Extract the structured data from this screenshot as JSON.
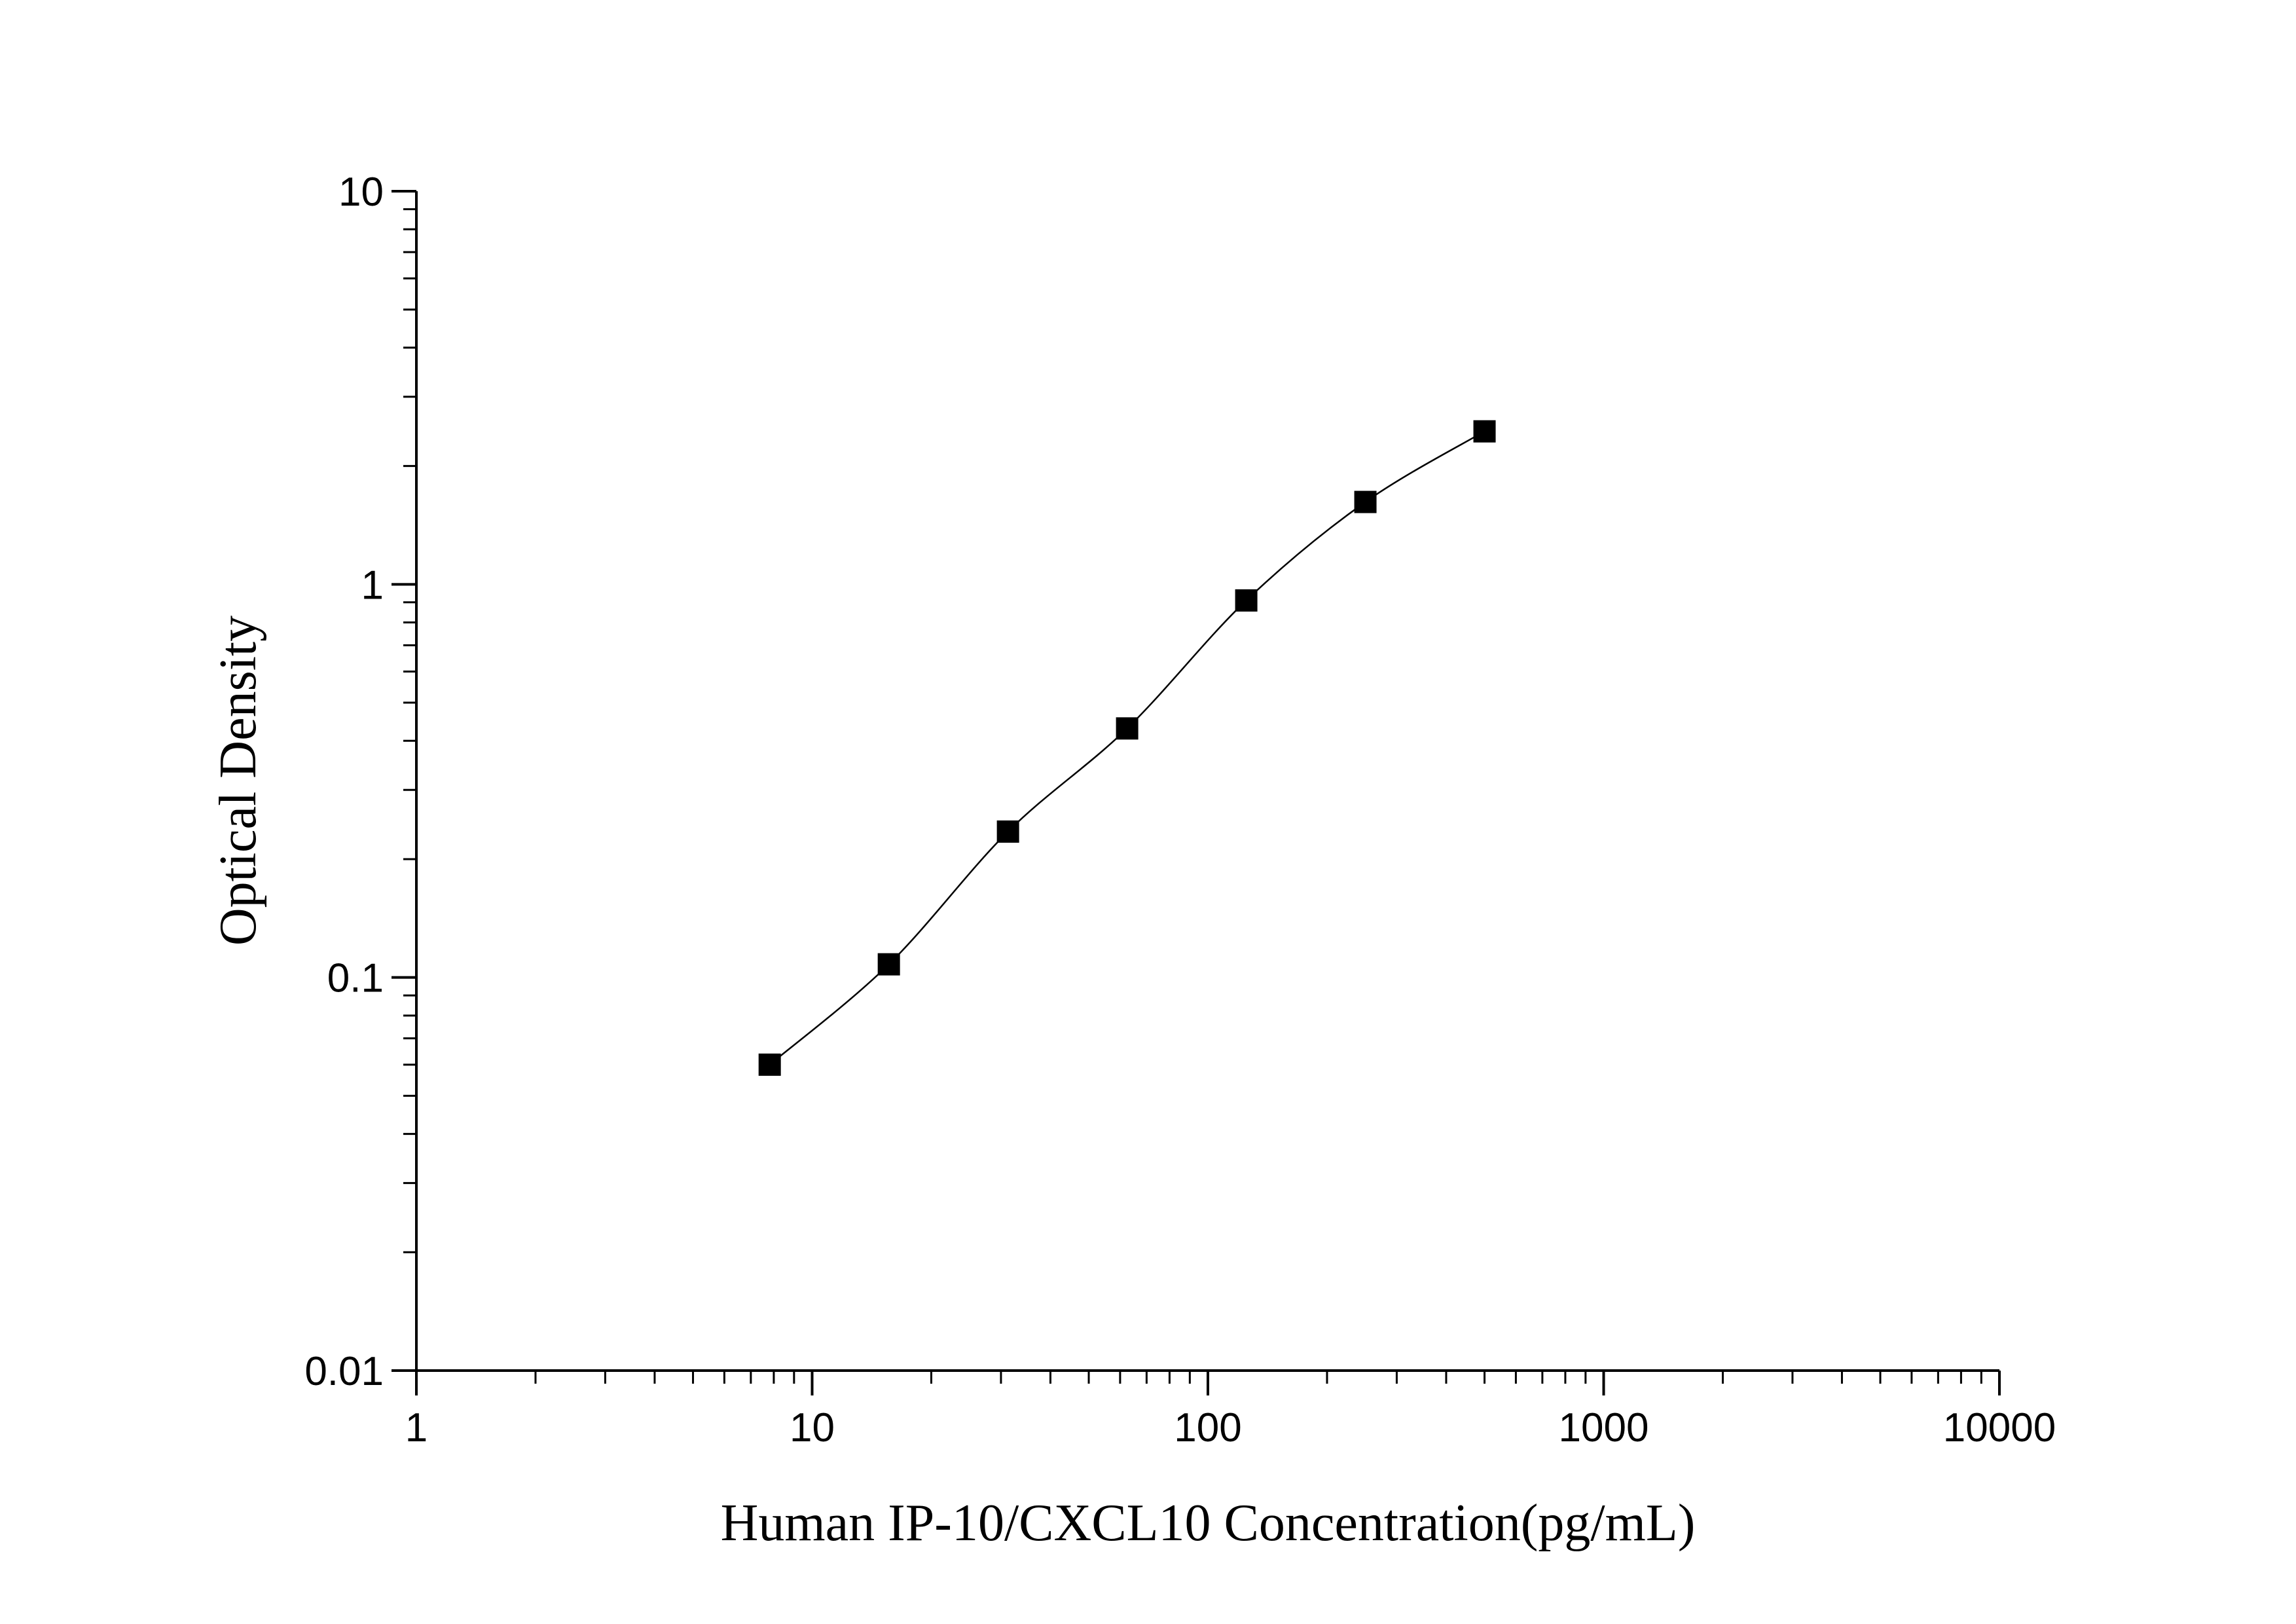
{
  "chart_data": {
    "type": "scatter",
    "title": "",
    "xlabel": "Human IP-10/CXCL10 Concentration(pg/mL)",
    "ylabel": "Optical Density",
    "x_scale": "log",
    "y_scale": "log",
    "xlim": [
      1,
      10000
    ],
    "ylim": [
      0.01,
      10
    ],
    "x_ticks": [
      "1",
      "10",
      "100",
      "1000",
      "10000"
    ],
    "y_ticks": [
      "0.01",
      "0.1",
      "1",
      "10"
    ],
    "grid": false,
    "fit_curve": true,
    "marker": "square",
    "color": "#000000",
    "x": [
      7.8125,
      15.625,
      31.25,
      62.5,
      125,
      250,
      500
    ],
    "y": [
      0.06,
      0.108,
      0.235,
      0.43,
      0.91,
      1.62,
      2.45
    ]
  }
}
